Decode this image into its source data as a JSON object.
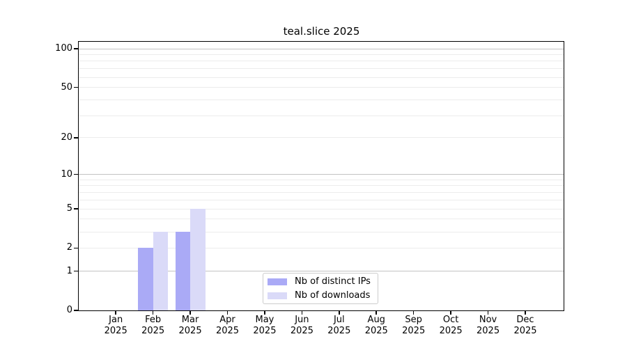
{
  "chart_data": {
    "type": "bar",
    "title": "teal.slice 2025",
    "y_scale": "log1p",
    "ylim": [
      0,
      113
    ],
    "y_ticks": [
      0,
      1,
      2,
      5,
      10,
      20,
      50,
      100
    ],
    "y_major_gridlines": [
      1,
      10,
      100
    ],
    "y_minor_gridlines": [
      2,
      3,
      4,
      5,
      6,
      7,
      8,
      9,
      20,
      30,
      40,
      50,
      60,
      70,
      80,
      90
    ],
    "categories": [
      "Jan",
      "Feb",
      "Mar",
      "Apr",
      "May",
      "Jun",
      "Jul",
      "Aug",
      "Sep",
      "Oct",
      "Nov",
      "Dec"
    ],
    "x_sublabel": "2025",
    "grid": true,
    "legend_position": "lower center",
    "series": [
      {
        "name": "Nb of distinct IPs",
        "color": "#aaaaf6",
        "values": [
          0,
          2,
          3,
          0,
          0,
          0,
          0,
          0,
          0,
          0,
          0,
          0
        ]
      },
      {
        "name": "Nb of downloads",
        "color": "#dadaf8",
        "values": [
          0,
          3,
          5,
          0,
          0,
          0,
          0,
          0,
          0,
          0,
          0,
          0
        ]
      }
    ]
  },
  "colors": {
    "background": "#ffffff",
    "axis": "#000000",
    "major_grid": "#c3c3c3",
    "minor_grid": "#ececec",
    "legend_border": "#cccccc"
  }
}
